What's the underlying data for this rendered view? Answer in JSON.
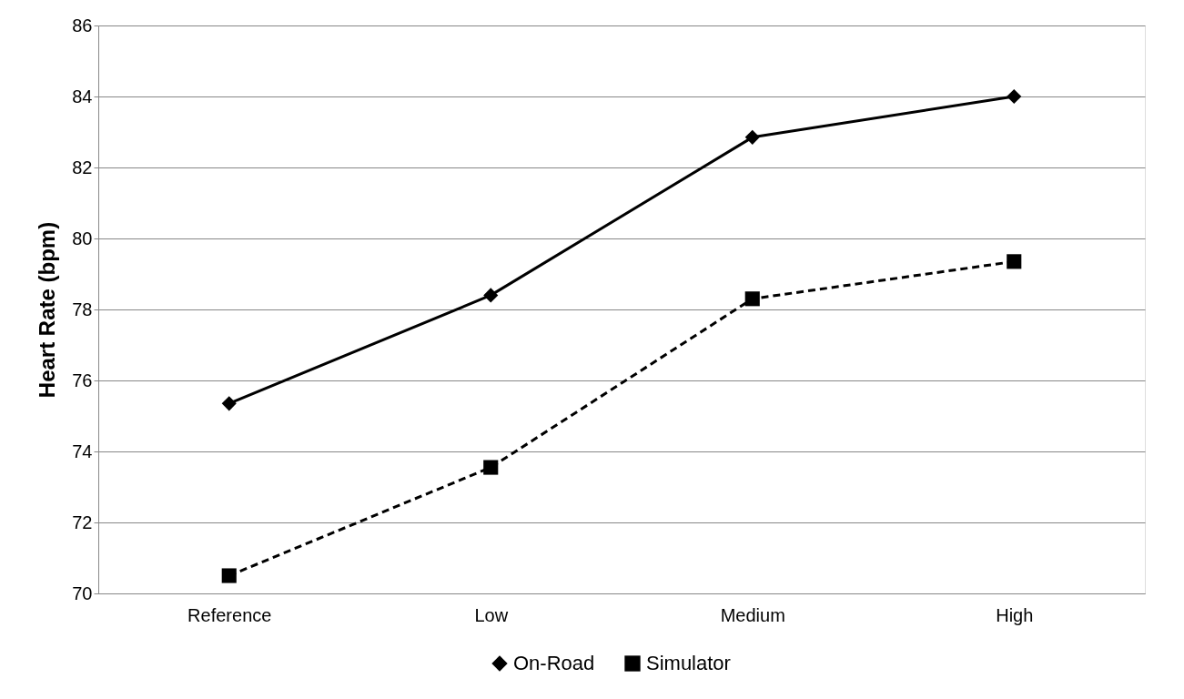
{
  "chart_data": {
    "type": "line",
    "ylabel": "Heart Rate (bpm)",
    "categories": [
      "Reference",
      "Low",
      "Medium",
      "High"
    ],
    "series": [
      {
        "name": "On-Road",
        "color": "#000000",
        "values": [
          75.35,
          78.4,
          82.85,
          84.0
        ],
        "marker": "diamond",
        "line_style": "solid"
      },
      {
        "name": "Simulator",
        "color": "#000000",
        "values": [
          70.5,
          73.55,
          78.3,
          79.35
        ],
        "marker": "square",
        "line_style": "dashed"
      }
    ],
    "ylim": [
      70,
      86
    ],
    "yticks": [
      70,
      72,
      74,
      76,
      78,
      80,
      82,
      84,
      86
    ],
    "grid": "y",
    "legend": "bottom"
  }
}
